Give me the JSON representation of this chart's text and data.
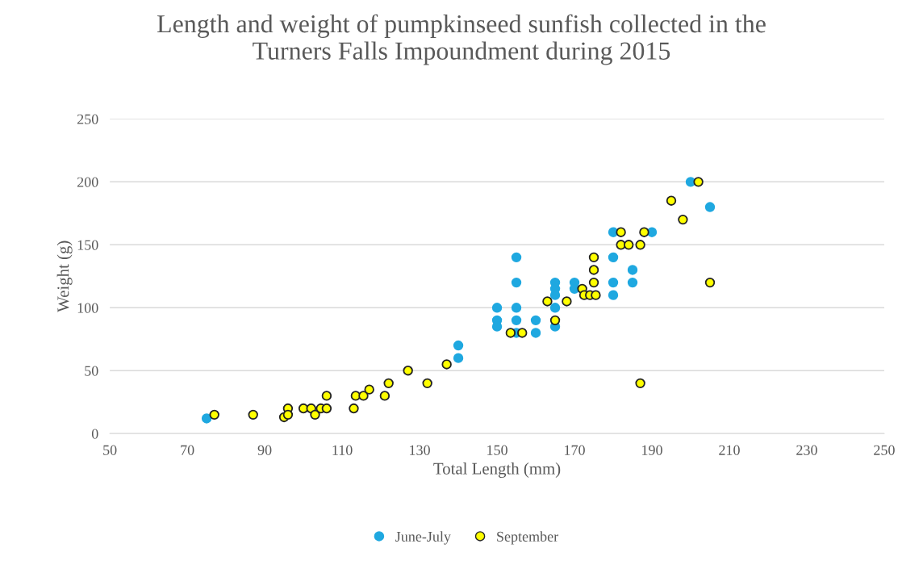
{
  "chart_data": {
    "type": "scatter",
    "title": "Length and weight of pumpkinseed sunfish collected in the\nTurners Falls Impoundment during 2015",
    "xlabel": "Total Length (mm)",
    "ylabel": "Weight (g)",
    "xlim": [
      50,
      250
    ],
    "xticks": [
      50,
      70,
      90,
      110,
      130,
      150,
      170,
      190,
      210,
      230,
      250
    ],
    "ylim": [
      0,
      250
    ],
    "yticks": [
      0,
      50,
      100,
      150,
      200,
      250
    ],
    "grid": "y",
    "legend": "bottom",
    "marker": "circle",
    "series": [
      {
        "name": "June-July",
        "color": "#1fa8e0",
        "x": [
          75,
          140,
          140,
          150,
          150,
          150,
          155,
          155,
          155,
          155,
          155,
          160,
          160,
          165,
          165,
          165,
          165,
          165,
          170,
          170,
          180,
          180,
          180,
          180,
          185,
          185,
          190,
          200,
          205
        ],
        "values": [
          12,
          70,
          60,
          100,
          90,
          85,
          140,
          120,
          100,
          90,
          80,
          90,
          80,
          120,
          115,
          110,
          100,
          85,
          120,
          115,
          160,
          140,
          120,
          110,
          130,
          120,
          160,
          200,
          180
        ]
      },
      {
        "name": "September",
        "color": "#ffff00",
        "x": [
          77,
          87,
          95,
          96,
          96,
          100,
          102,
          103,
          104.5,
          106,
          106,
          113,
          113.5,
          115.5,
          117,
          121,
          122,
          127,
          132,
          137,
          153.5,
          156.5,
          163,
          165,
          168,
          172,
          172.5,
          174,
          175.5,
          175,
          175,
          175,
          182,
          182,
          184,
          187,
          188,
          187,
          195,
          198,
          202,
          205
        ],
        "values": [
          15,
          15,
          13,
          20,
          15,
          20,
          20,
          15,
          20,
          30,
          20,
          20,
          30,
          30,
          35,
          30,
          40,
          50,
          40,
          55,
          80,
          80,
          105,
          90,
          105,
          115,
          110,
          110,
          110,
          140,
          130,
          120,
          160,
          150,
          150,
          150,
          160,
          40,
          185,
          170,
          200,
          120
        ]
      }
    ]
  }
}
